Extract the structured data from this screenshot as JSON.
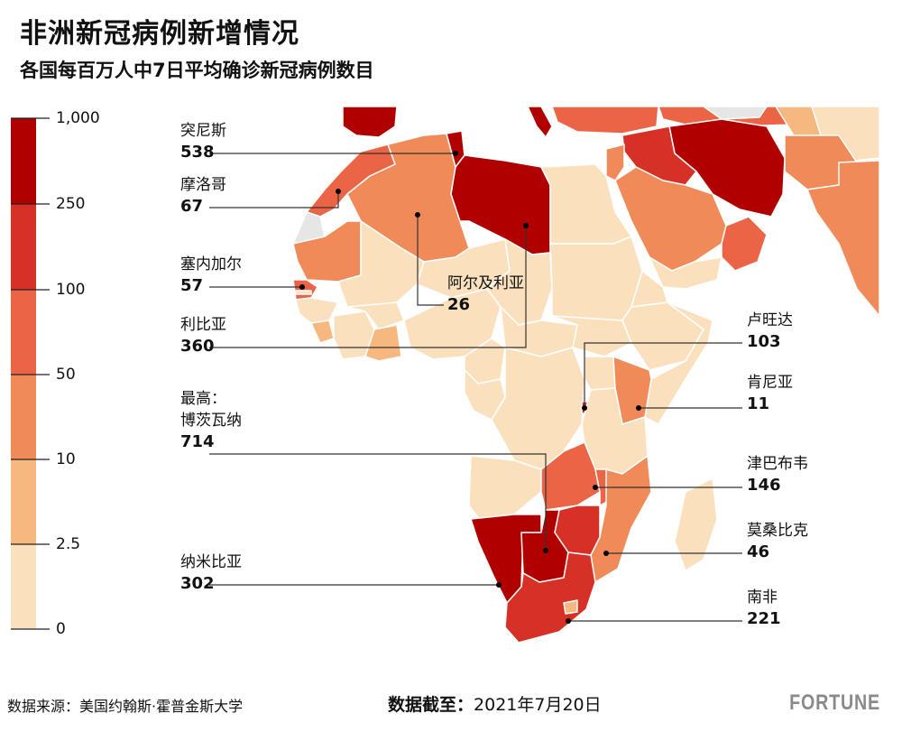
{
  "title": "非洲新冠病例新增情况",
  "subtitle": "各国每百万人中7日平均确诊新冠病例数目",
  "legend": {
    "ticks": [
      "1,000",
      "250",
      "100",
      "50",
      "10",
      "2.5",
      "0"
    ],
    "colors": [
      "#b00000",
      "#d73027",
      "#ec6446",
      "#f08a58",
      "#f6b87f",
      "#fbe0bd"
    ]
  },
  "colors": {
    "no_data": "#e6e6e6",
    "ocean": "#ffffff",
    "border": "#ffffff"
  },
  "countries": [
    {
      "name": "突尼斯",
      "value": "538"
    },
    {
      "name": "摩洛哥",
      "value": "67"
    },
    {
      "name": "塞内加尔",
      "value": "57"
    },
    {
      "name": "利比亚",
      "value": "360"
    },
    {
      "name": "阿尔及利亚",
      "value": "26"
    },
    {
      "name": "最高：",
      "name2": "博茨瓦纳",
      "value": "714"
    },
    {
      "name": "纳米比亚",
      "value": "302"
    },
    {
      "name": "卢旺达",
      "value": "103"
    },
    {
      "name": "肯尼亚",
      "value": "11"
    },
    {
      "name": "津巴布韦",
      "value": "146"
    },
    {
      "name": "莫桑比克",
      "value": "46"
    },
    {
      "name": "南非",
      "value": "221"
    }
  ],
  "footer": {
    "source": "数据来源：美国约翰斯·霍普金斯大学",
    "date_label": "数据截至：",
    "date_value": "2021年7月20日",
    "brand": "FORTUNE"
  }
}
